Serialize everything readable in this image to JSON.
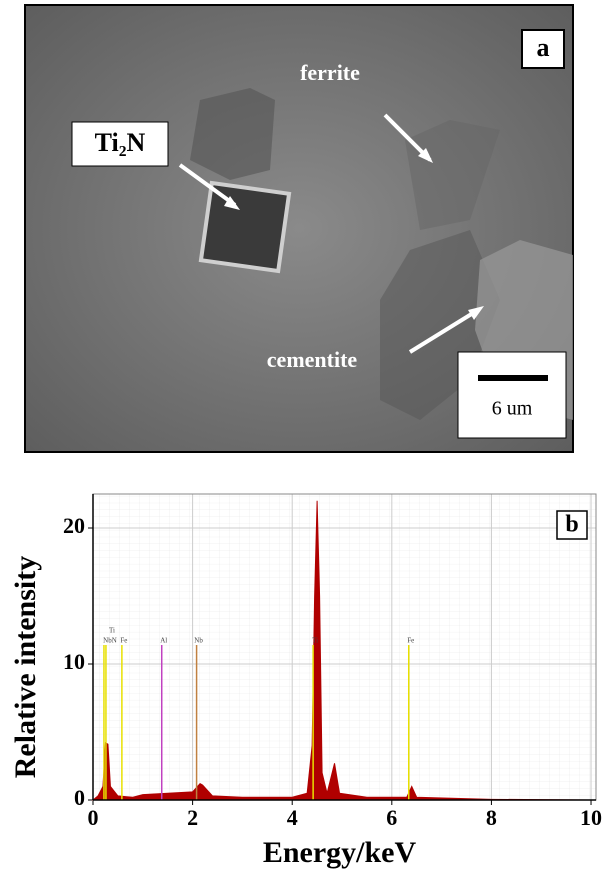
{
  "panel_a": {
    "panel_label": "a",
    "labels": {
      "ferrite": "ferrite",
      "particle": "Ti₂N",
      "cementite": "cementite"
    },
    "scale_bar": "6 um"
  },
  "chart_data": {
    "type": "area",
    "panel_label": "b",
    "x_label": "Energy/keV",
    "y_label": "Relative intensity",
    "color": "#b00000",
    "x": [
      0,
      0.1,
      0.2,
      0.25,
      0.3,
      0.35,
      0.5,
      0.8,
      1,
      1.5,
      2,
      2.15,
      2.2,
      2.4,
      3,
      4,
      4.3,
      4.4,
      4.45,
      4.5,
      4.55,
      4.6,
      4.7,
      4.85,
      4.95,
      5.5,
      6.3,
      6.4,
      6.5,
      8,
      10
    ],
    "values": [
      0,
      0.3,
      1,
      4.2,
      4.1,
      1,
      0.3,
      0.2,
      0.4,
      0.5,
      0.6,
      1.2,
      1.1,
      0.3,
      0.2,
      0.2,
      0.5,
      4,
      15,
      22,
      15,
      2,
      0.5,
      2.7,
      0.5,
      0.2,
      0.2,
      1,
      0.2,
      0.05,
      0
    ],
    "markers": [
      {
        "x": 0.26,
        "label": "Ti",
        "color": "#e8e000"
      },
      {
        "x": 0.22,
        "label": "NbN",
        "color": "#e8e000"
      },
      {
        "x": 0.58,
        "label": "Fe",
        "color": "#e8e000"
      },
      {
        "x": 1.38,
        "label": "Al",
        "color": "#c040c0"
      },
      {
        "x": 2.08,
        "label": "Nb",
        "color": "#c08040"
      },
      {
        "x": 4.42,
        "label": "Ti",
        "color": "#e8e000"
      },
      {
        "x": 6.34,
        "label": "Fe",
        "color": "#e8e000"
      }
    ],
    "marker_height": 11.4,
    "xlim": [
      0,
      10.1
    ],
    "ylim": [
      0,
      22.5
    ],
    "xticks": [
      0,
      2,
      4,
      6,
      8,
      10
    ],
    "yticks": [
      0,
      10,
      20
    ],
    "grid": true
  }
}
